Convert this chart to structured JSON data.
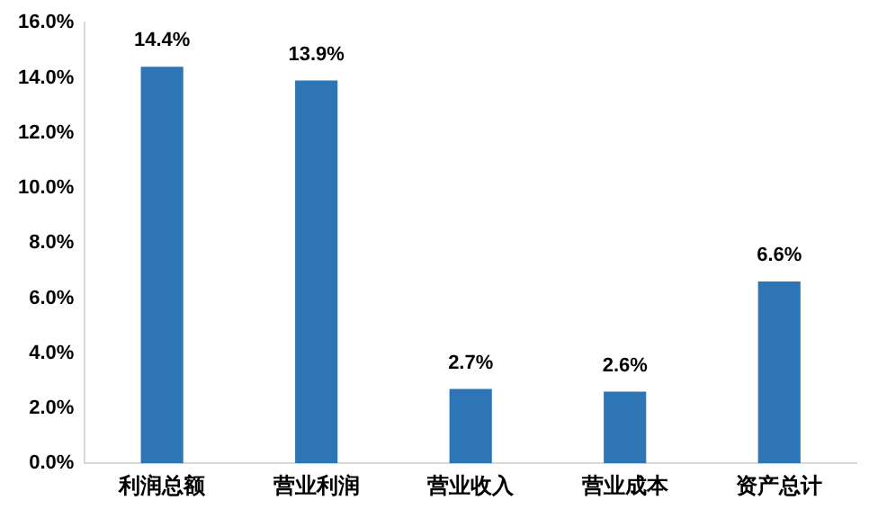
{
  "chart_data": {
    "type": "bar",
    "categories": [
      "利润总额",
      "营业利润",
      "营业收入",
      "营业成本",
      "资产总计"
    ],
    "values": [
      14.4,
      13.9,
      2.7,
      2.6,
      6.6
    ],
    "value_labels": [
      "14.4%",
      "13.9%",
      "2.7%",
      "2.6%",
      "6.6%"
    ],
    "color": "#2e75b6",
    "ylim": [
      0,
      16
    ],
    "yticks": [
      {
        "value": 0,
        "label": "0.0%"
      },
      {
        "value": 2,
        "label": "2.0%"
      },
      {
        "value": 4,
        "label": "4.0%"
      },
      {
        "value": 6,
        "label": "6.0%"
      },
      {
        "value": 8,
        "label": "8.0%"
      },
      {
        "value": 10,
        "label": "10.0%"
      },
      {
        "value": 12,
        "label": "12.0%"
      },
      {
        "value": 14,
        "label": "14.0%"
      },
      {
        "value": 16,
        "label": "16.0%"
      }
    ],
    "grid": false,
    "legend": false
  }
}
